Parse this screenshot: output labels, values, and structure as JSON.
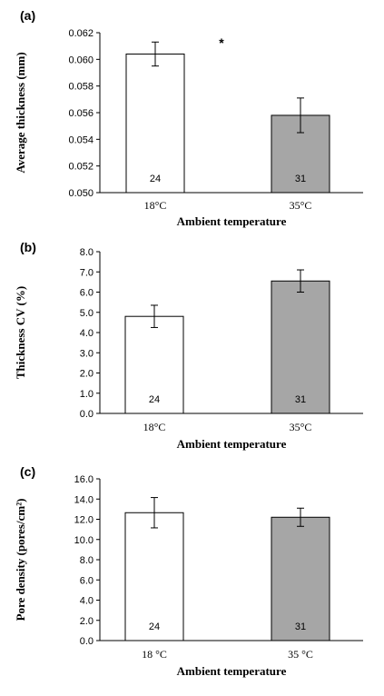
{
  "chart_data": [
    {
      "type": "bar",
      "panel": "(a)",
      "categories": [
        "18°C",
        "35°C"
      ],
      "values": [
        0.0604,
        0.0558
      ],
      "errors": [
        0.0009,
        0.0013
      ],
      "n_labels": [
        "24",
        "31"
      ],
      "bar_colors": [
        "#ffffff",
        "#a6a6a6"
      ],
      "significance": "*",
      "xlabel": "Ambient temperature",
      "ylabel": "Average thickness (mm)",
      "ylim": [
        0.05,
        0.062
      ],
      "yticks": [
        0.05,
        0.052,
        0.054,
        0.056,
        0.058,
        0.06,
        0.062
      ],
      "ytick_labels": [
        "0.050",
        "0.052",
        "0.054",
        "0.056",
        "0.058",
        "0.060",
        "0.062"
      ]
    },
    {
      "type": "bar",
      "panel": "(b)",
      "categories": [
        "18°C",
        "35°C"
      ],
      "values": [
        4.8,
        6.55
      ],
      "errors": [
        0.55,
        0.55
      ],
      "n_labels": [
        "24",
        "31"
      ],
      "bar_colors": [
        "#ffffff",
        "#a6a6a6"
      ],
      "xlabel": "Ambient temperature",
      "ylabel": "Thickness CV (%)",
      "ylim": [
        0,
        8
      ],
      "yticks": [
        0,
        1,
        2,
        3,
        4,
        5,
        6,
        7,
        8
      ],
      "ytick_labels": [
        "0.0",
        "1.0",
        "2.0",
        "3.0",
        "4.0",
        "5.0",
        "6.0",
        "7.0",
        "8.0"
      ]
    },
    {
      "type": "bar",
      "panel": "(c)",
      "categories": [
        "18 °C",
        "35 °C"
      ],
      "values": [
        12.65,
        12.2
      ],
      "errors": [
        1.5,
        0.9
      ],
      "n_labels": [
        "24",
        "31"
      ],
      "bar_colors": [
        "#ffffff",
        "#a6a6a6"
      ],
      "xlabel": "Ambient temperature",
      "ylabel": "Pore density (pores/cm²)",
      "ylim": [
        0,
        16
      ],
      "yticks": [
        0,
        2,
        4,
        6,
        8,
        10,
        12,
        14,
        16
      ],
      "ytick_labels": [
        "0.0",
        "2.0",
        "4.0",
        "6.0",
        "8.0",
        "10.0",
        "12.0",
        "14.0",
        "16.0"
      ]
    }
  ]
}
